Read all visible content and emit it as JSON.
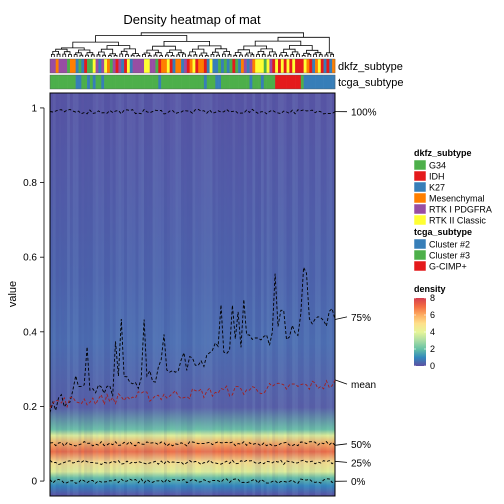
{
  "chart_data": {
    "type": "heatmap",
    "title": "Density heatmap of mat",
    "ylabel": "value",
    "ylim": [
      -0.04,
      1.04
    ],
    "yticks": [
      0,
      0.2,
      0.4,
      0.6,
      0.8,
      1
    ],
    "n_columns": 100,
    "annotations": [
      {
        "name": "dkfz_subtype",
        "label": "dkfz_subtype"
      },
      {
        "name": "tcga_subtype",
        "label": "tcga_subtype"
      }
    ],
    "quantile_lines": [
      {
        "name": "100%",
        "label": "100%",
        "color": "#000000",
        "level": 0.99
      },
      {
        "name": "75%",
        "label": "75%",
        "color": "#000000",
        "level": 0.44
      },
      {
        "name": "mean",
        "label": "mean",
        "color": "#a02020",
        "level": 0.26
      },
      {
        "name": "50%",
        "label": "50%",
        "color": "#000000",
        "level": 0.1
      },
      {
        "name": "25%",
        "label": "25%",
        "color": "#000000",
        "level": 0.05
      },
      {
        "name": "0%",
        "label": "0%",
        "color": "#000000",
        "level": 0.0
      }
    ],
    "legends": [
      {
        "title": "dkfz_subtype",
        "items": [
          {
            "label": "G34",
            "color": "#4daf4a"
          },
          {
            "label": "IDH",
            "color": "#e41a1c"
          },
          {
            "label": "K27",
            "color": "#377eb8"
          },
          {
            "label": "Mesenchymal",
            "color": "#ff7f00"
          },
          {
            "label": "RTK I PDGFRA",
            "color": "#984ea3"
          },
          {
            "label": "RTK II Classic",
            "color": "#ffff33"
          }
        ]
      },
      {
        "title": "tcga_subtype",
        "items": [
          {
            "label": "Cluster #2",
            "color": "#377eb8"
          },
          {
            "label": "Cluster #3",
            "color": "#4daf4a"
          },
          {
            "label": "G-CIMP+",
            "color": "#e41a1c"
          }
        ]
      }
    ],
    "density_legend": {
      "title": "density",
      "range": [
        0,
        8
      ],
      "ticks": [
        "8",
        "6",
        "4",
        "2",
        "0"
      ],
      "colors": [
        "#5e4fa2",
        "#3288bd",
        "#66c2a5",
        "#abdda4",
        "#e6f598",
        "#fee08b",
        "#fdae61",
        "#f46d43",
        "#d53e4f"
      ]
    }
  }
}
